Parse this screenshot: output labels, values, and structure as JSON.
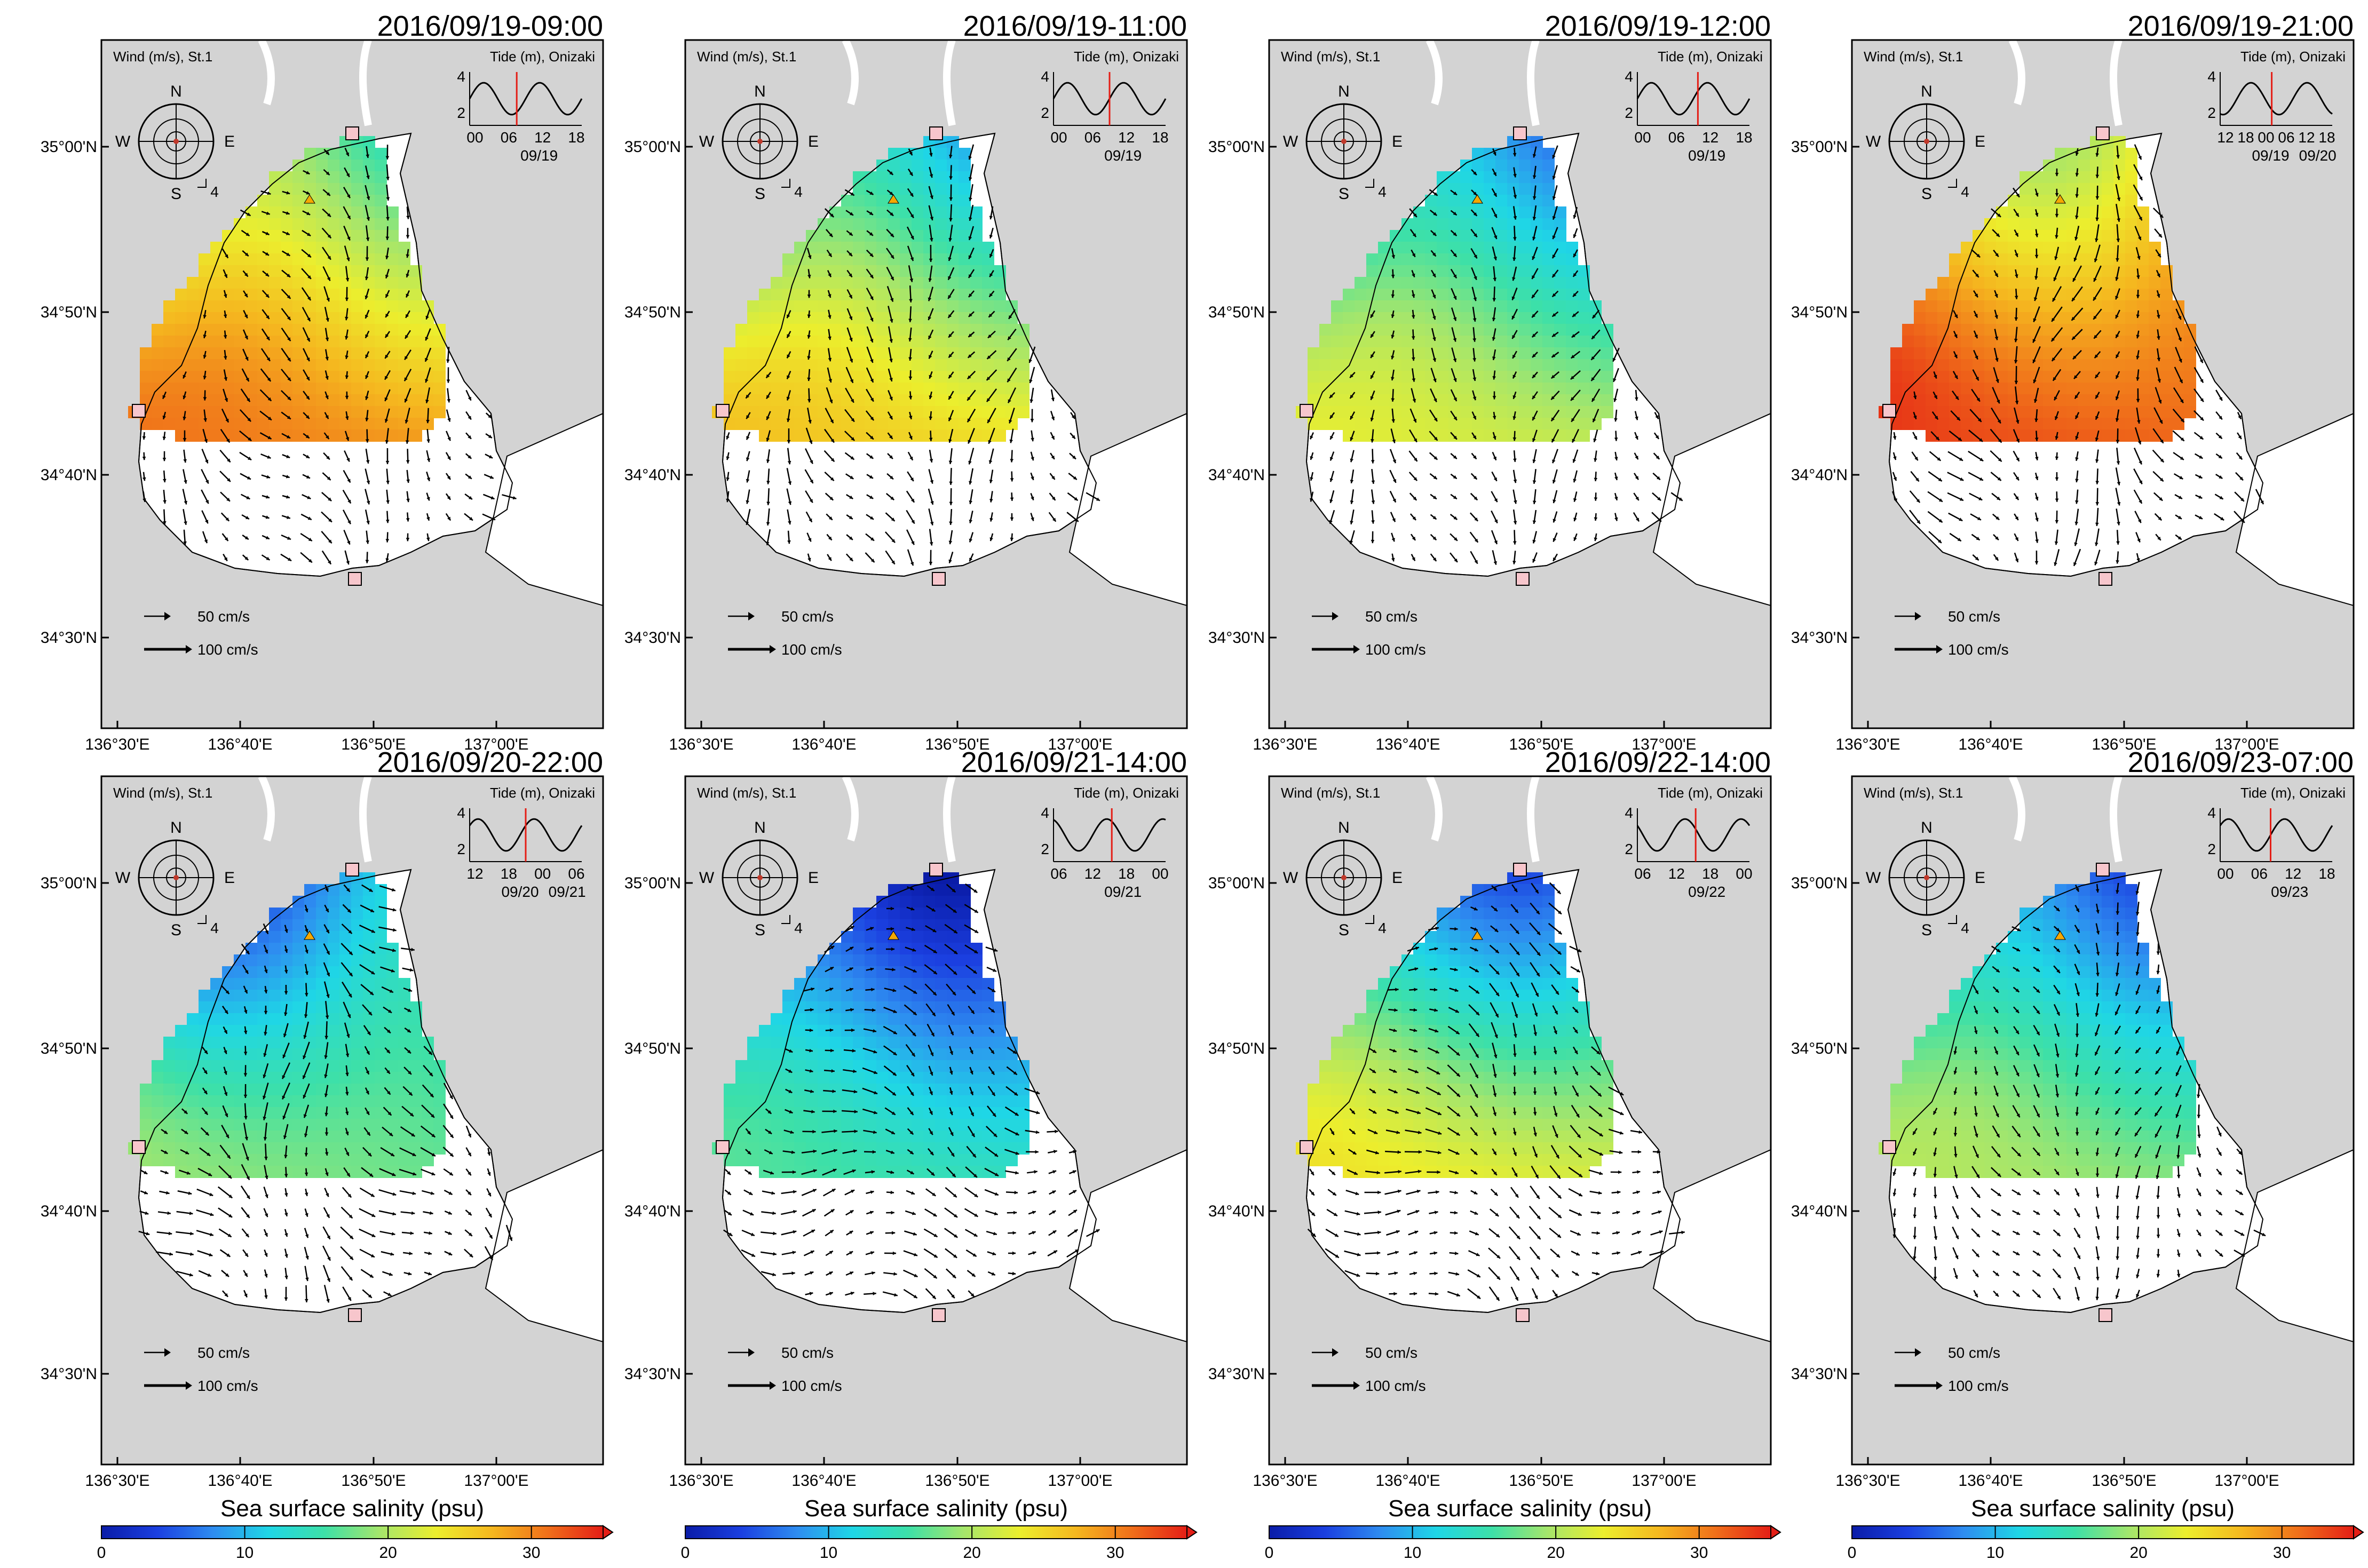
{
  "figure": {
    "variable_label": "Sea surface salinity (psu)",
    "wind_label": "Wind (m/s), St.1",
    "tide_label": "Tide (m), Onizaki",
    "wind_scale_value": "4",
    "compass": {
      "n": "N",
      "s": "S",
      "e": "E",
      "w": "W"
    },
    "velocity_legend": [
      "50 cm/s",
      "100 cm/s"
    ],
    "lat_labels": [
      "35°00'N",
      "34°50'N",
      "34°40'N",
      "34°30'N"
    ],
    "lon_labels": [
      "136°30'E",
      "136°40'E",
      "136°50'E",
      "137°00'E"
    ],
    "colorbar": {
      "ticks": [
        "0",
        "10",
        "20",
        "30"
      ],
      "min": 0,
      "max": 35,
      "colors": [
        "#0a1ca8",
        "#1b3fe0",
        "#2e8cf0",
        "#1fd6e6",
        "#3de0a8",
        "#a6e66b",
        "#ecee2d",
        "#f5b81f",
        "#f0701a",
        "#e41e16"
      ]
    },
    "colors": {
      "land": "#d3d3d3",
      "sea_unsampled": "#ffffff",
      "tide_line": "#000000",
      "tide_marker": "#e41e16",
      "station_square": "#f7c6cc",
      "station_triangle": "#f5a800",
      "arrow": "#000000"
    }
  },
  "panels": [
    {
      "datetime": "2016/09/19-09:00",
      "tide_ticks": [
        "00",
        "06",
        "12",
        "18"
      ],
      "tide_dates": [
        "09/19"
      ],
      "marker_frac": 0.42,
      "phase": 0.0,
      "salinity_base": 22,
      "salinity_gradient": 11,
      "current_dir_deg": 160,
      "current_strength": 0.8
    },
    {
      "datetime": "2016/09/19-11:00",
      "tide_ticks": [
        "00",
        "06",
        "12",
        "18"
      ],
      "tide_dates": [
        "09/19"
      ],
      "marker_frac": 0.5,
      "phase": 0.0,
      "salinity_base": 17,
      "salinity_gradient": 12,
      "current_dir_deg": 175,
      "current_strength": 0.9
    },
    {
      "datetime": "2016/09/19-12:00",
      "tide_ticks": [
        "00",
        "06",
        "12",
        "18"
      ],
      "tide_dates": [
        "09/19"
      ],
      "marker_frac": 0.54,
      "phase": 0.0,
      "salinity_base": 14,
      "salinity_gradient": 11,
      "current_dir_deg": 180,
      "current_strength": 0.7
    },
    {
      "datetime": "2016/09/19-21:00",
      "tide_ticks": [
        "12",
        "18",
        "00",
        "06",
        "12",
        "18"
      ],
      "tide_dates": [
        "09/19",
        "09/20"
      ],
      "marker_frac": 0.46,
      "phase": 0.35,
      "salinity_base": 27,
      "salinity_gradient": 7,
      "current_dir_deg": 170,
      "current_strength": 1.0
    },
    {
      "datetime": "2016/09/20-22:00",
      "tide_ticks": [
        "12",
        "18",
        "00",
        "06"
      ],
      "tide_dates": [
        "09/20",
        "09/21"
      ],
      "marker_frac": 0.5,
      "phase": 0.55,
      "salinity_base": 12,
      "salinity_gradient": 8,
      "current_dir_deg": 150,
      "current_strength": 1.0
    },
    {
      "datetime": "2016/09/21-14:00",
      "tide_ticks": [
        "06",
        "12",
        "18",
        "00"
      ],
      "tide_dates": [
        "09/21"
      ],
      "marker_frac": 0.52,
      "phase": 0.15,
      "salinity_base": 8,
      "salinity_gradient": 10,
      "current_dir_deg": 110,
      "current_strength": 0.8
    },
    {
      "datetime": "2016/09/22-14:00",
      "tide_ticks": [
        "06",
        "12",
        "18",
        "00"
      ],
      "tide_dates": [
        "09/22"
      ],
      "marker_frac": 0.52,
      "phase": 0.2,
      "salinity_base": 14,
      "salinity_gradient": 13,
      "current_dir_deg": 125,
      "current_strength": 0.9
    },
    {
      "datetime": "2016/09/23-07:00",
      "tide_ticks": [
        "00",
        "06",
        "12",
        "18"
      ],
      "tide_dates": [
        "09/23"
      ],
      "marker_frac": 0.45,
      "phase": 0.05,
      "salinity_base": 12,
      "salinity_gradient": 10,
      "current_dir_deg": 170,
      "current_strength": 0.6
    }
  ]
}
